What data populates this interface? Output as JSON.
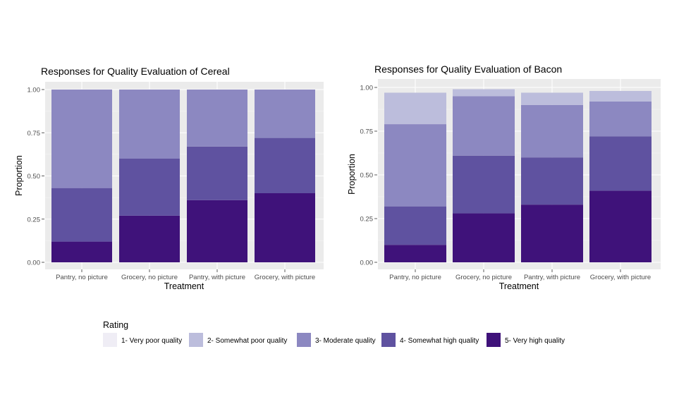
{
  "colors": {
    "panel": "#ebebeb",
    "grid": "#ffffff",
    "axis_text": "#4d4d4d",
    "title_text": "#000000"
  },
  "legend": {
    "title": "Rating",
    "items": [
      {
        "label": "1- Very poor quality",
        "color": "#efedf5"
      },
      {
        "label": "2- Somewhat poor quality",
        "color": "#bcbddc"
      },
      {
        "label": "3- Moderate quality",
        "color": "#8c88c1"
      },
      {
        "label": "4- Somewhat high quality",
        "color": "#5f52a0"
      },
      {
        "label": "5- Very high quality",
        "color": "#3f127a"
      }
    ]
  },
  "chart_data": [
    {
      "type": "bar",
      "stacked": true,
      "title": "Responses for Quality Evaluation of Cereal",
      "xlabel": "Treatment",
      "ylabel": "Proportion",
      "ylim": [
        0,
        1
      ],
      "yticks": [
        "0.00",
        "0.25",
        "0.50",
        "0.75",
        "1.00"
      ],
      "categories": [
        "Pantry, no picture",
        "Grocery, no picture",
        "Pantry, with picture",
        "Grocery, with picture"
      ],
      "series": [
        {
          "name": "5- Very high quality",
          "values": [
            0.12,
            0.27,
            0.36,
            0.4
          ]
        },
        {
          "name": "4- Somewhat high quality",
          "values": [
            0.31,
            0.33,
            0.31,
            0.32
          ]
        },
        {
          "name": "3- Moderate quality",
          "values": [
            0.57,
            0.4,
            0.33,
            0.28
          ]
        },
        {
          "name": "2- Somewhat poor quality",
          "values": [
            0,
            0,
            0,
            0
          ]
        },
        {
          "name": "1- Very poor quality",
          "values": [
            0,
            0,
            0,
            0
          ]
        }
      ]
    },
    {
      "type": "bar",
      "stacked": true,
      "title": "Responses for Quality Evaluation of Bacon",
      "xlabel": "Treatment",
      "ylabel": "Proportion",
      "ylim": [
        0,
        1
      ],
      "yticks": [
        "0.00",
        "0.25",
        "0.50",
        "0.75",
        "1.00"
      ],
      "categories": [
        "Pantry, no picture",
        "Grocery, no picture",
        "Pantry, with picture",
        "Grocery, with picture"
      ],
      "series": [
        {
          "name": "5- Very high quality",
          "values": [
            0.1,
            0.28,
            0.33,
            0.41
          ]
        },
        {
          "name": "4- Somewhat high quality",
          "values": [
            0.22,
            0.33,
            0.27,
            0.31
          ]
        },
        {
          "name": "3- Moderate quality",
          "values": [
            0.47,
            0.34,
            0.3,
            0.2
          ]
        },
        {
          "name": "2- Somewhat poor quality",
          "values": [
            0.18,
            0.04,
            0.07,
            0.06
          ]
        },
        {
          "name": "1- Very poor quality",
          "values": [
            0,
            0,
            0,
            0
          ]
        }
      ]
    }
  ]
}
